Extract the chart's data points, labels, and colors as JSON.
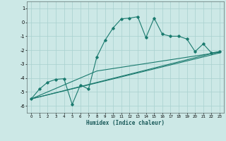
{
  "xlabel": "Humidex (Indice chaleur)",
  "xlim": [
    -0.5,
    23.5
  ],
  "ylim": [
    -6.5,
    1.5
  ],
  "yticks": [
    1,
    0,
    -1,
    -2,
    -3,
    -4,
    -5,
    -6
  ],
  "xticks": [
    0,
    1,
    2,
    3,
    4,
    5,
    6,
    7,
    8,
    9,
    10,
    11,
    12,
    13,
    14,
    15,
    16,
    17,
    18,
    19,
    20,
    21,
    22,
    23
  ],
  "bg_color": "#cce8e6",
  "grid_color": "#a8d0ce",
  "line_color": "#1a7a6e",
  "series1_x": [
    0,
    1,
    2,
    3,
    4,
    5,
    6,
    7,
    8,
    9,
    10,
    11,
    12,
    13,
    14,
    15,
    16,
    17,
    18,
    19,
    20,
    21,
    22,
    23
  ],
  "series1_y": [
    -5.5,
    -4.8,
    -4.3,
    -4.1,
    -4.05,
    -5.9,
    -4.5,
    -4.8,
    -2.5,
    -1.3,
    -0.4,
    0.25,
    0.3,
    0.4,
    -1.1,
    0.3,
    -0.85,
    -1.0,
    -1.0,
    -1.2,
    -2.1,
    -1.55,
    -2.2,
    -2.1
  ],
  "line1_x": [
    0,
    23
  ],
  "line1_y": [
    -5.5,
    -2.1
  ],
  "line2_x": [
    0,
    23
  ],
  "line2_y": [
    -5.5,
    -2.2
  ],
  "line3_x": [
    0,
    8,
    23
  ],
  "line3_y": [
    -5.5,
    -3.5,
    -2.15
  ]
}
